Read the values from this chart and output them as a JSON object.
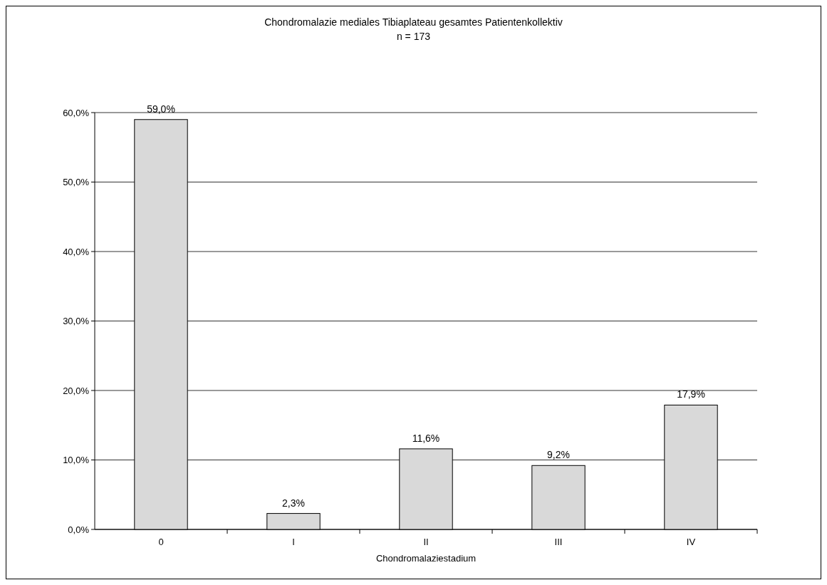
{
  "chart_data": {
    "type": "bar",
    "title": "Chondromalazie mediales Tibiaplateau gesamtes Patientenkollektiv",
    "subtitle": "n = 173",
    "xlabel": "Chondromalaziestadium",
    "categories": [
      "0",
      "I",
      "II",
      "III",
      "IV"
    ],
    "values": [
      59.0,
      2.3,
      11.6,
      9.2,
      17.9
    ],
    "value_labels": [
      "59,0%",
      "2,3%",
      "11,6%",
      "9,2%",
      "17,9%"
    ],
    "color": "#d9d9d9",
    "ylim": [
      0,
      60
    ],
    "yticks": [
      {
        "value": 0,
        "label": "0,0%"
      },
      {
        "value": 10,
        "label": "10,0%"
      },
      {
        "value": 20,
        "label": "20,0%"
      },
      {
        "value": 30,
        "label": "30,0%"
      },
      {
        "value": 40,
        "label": "40,0%"
      },
      {
        "value": 50,
        "label": "50,0%"
      },
      {
        "value": 60,
        "label": "60,0%"
      }
    ],
    "grid": "y"
  }
}
